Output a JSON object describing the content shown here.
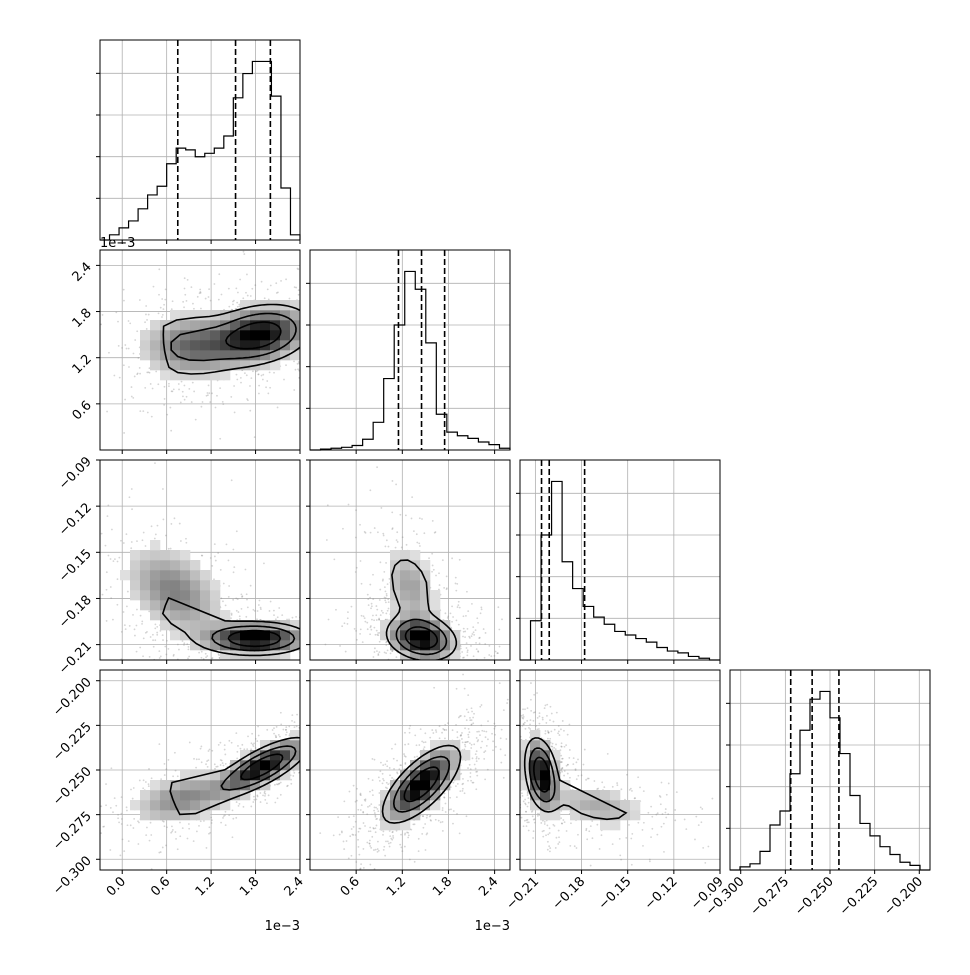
{
  "chart_data": {
    "type": "corner",
    "grid": true,
    "parameters": [
      {
        "range": [
          -0.0003,
          0.0024
        ],
        "ticks": [
          0.0,
          0.6,
          1.2,
          1.8,
          2.4
        ],
        "tick_labels": [
          "0.0",
          "0.6",
          "1.2",
          "1.8",
          "2.4"
        ],
        "offset_label": "1e−3"
      },
      {
        "range": [
          0.0,
          0.0026
        ],
        "ticks": [
          0.6,
          1.2,
          1.8,
          2.4
        ],
        "tick_labels": [
          "0.6",
          "1.2",
          "1.8",
          "2.4"
        ],
        "offset_label": "1e−3"
      },
      {
        "range": [
          -0.22,
          -0.09
        ],
        "ticks": [
          -0.21,
          -0.18,
          -0.15,
          -0.12,
          -0.09
        ],
        "tick_labels": [
          "−0.21",
          "−0.18",
          "−0.15",
          "−0.12",
          "−0.09"
        ],
        "offset_label": ""
      },
      {
        "range": [
          -0.306,
          -0.194
        ],
        "ticks": [
          -0.3,
          -0.275,
          -0.25,
          -0.225,
          -0.2
        ],
        "tick_labels": [
          "−0.300",
          "−0.275",
          "−0.250",
          "−0.225",
          "−0.200"
        ],
        "offset_label": ""
      }
    ],
    "row_tick_labels": [
      [],
      [
        "0.6",
        "1.2",
        "1.8",
        "2.4"
      ],
      [
        "−0.21",
        "−0.18",
        "−0.15",
        "−0.12",
        "−0.09"
      ],
      [
        "−0.300",
        "−0.275",
        "−0.250",
        "−0.225",
        "−0.200"
      ]
    ],
    "row_tick_values": [
      [],
      [
        0.6,
        1.2,
        1.8,
        2.4
      ],
      [
        -0.21,
        -0.18,
        -0.15,
        -0.12,
        -0.09
      ],
      [
        -0.3,
        -0.275,
        -0.25,
        -0.225,
        -0.2
      ]
    ],
    "row_offset_labels": [
      "",
      "1e−3",
      "",
      ""
    ],
    "quantiles": [
      [
        0.00075,
        0.00153,
        0.002
      ],
      [
        0.00115,
        0.00145,
        0.00175
      ],
      [
        -0.206,
        -0.201,
        -0.178
      ],
      [
        -0.272,
        -0.26,
        -0.245
      ]
    ],
    "histograms": [
      [
        0,
        3,
        7,
        11,
        18,
        26,
        31,
        44,
        53,
        52,
        48,
        50,
        53,
        60,
        82,
        96,
        103,
        103,
        83,
        30,
        3
      ],
      [
        0,
        1,
        2,
        3,
        5,
        12,
        31,
        80,
        140,
        200,
        180,
        120,
        40,
        20,
        16,
        13,
        9,
        6,
        2
      ],
      [
        0,
        22,
        70,
        100,
        55,
        40,
        30,
        24,
        20,
        16,
        14,
        12,
        10,
        7,
        5,
        4,
        2,
        1,
        0
      ],
      [
        0,
        2,
        4,
        12,
        29,
        38,
        62,
        90,
        110,
        115,
        98,
        75,
        48,
        30,
        22,
        15,
        10,
        5,
        3,
        0
      ]
    ],
    "density_modes": [
      [],
      [
        {
          "x": 0.00185,
          "y": 0.0015,
          "sx": 0.0004,
          "sy": 0.00022,
          "rho": 0.25,
          "w": 1.0
        },
        {
          "x": 0.0009,
          "y": 0.00135,
          "sx": 0.0004,
          "sy": 0.00025,
          "rho": 0.0,
          "w": 0.55
        }
      ],
      [
        {
          "x": 0.0018,
          "y": -0.206,
          "sx": 0.0004,
          "sy": 0.006,
          "rho": 0.0,
          "w": 1.0
        },
        {
          "x": 0.0007,
          "y": -0.175,
          "sx": 0.0004,
          "sy": 0.018,
          "rho": -0.4,
          "w": 0.45
        }
      ],
      [
        {
          "x": 0.0019,
          "y": -0.248,
          "sx": 0.00035,
          "sy": 0.009,
          "rho": 0.75,
          "w": 1.0
        },
        {
          "x": 0.0008,
          "y": -0.266,
          "sx": 0.0004,
          "sy": 0.009,
          "rho": 0.4,
          "w": 0.45
        }
      ]
    ],
    "density_modes_col1": [
      [],
      [],
      [
        {
          "x": 0.00145,
          "y": -0.206,
          "sx": 0.00025,
          "sy": 0.008,
          "rho": -0.2,
          "w": 1.0
        },
        {
          "x": 0.0013,
          "y": -0.172,
          "sx": 0.00022,
          "sy": 0.016,
          "rho": -0.3,
          "w": 0.35
        }
      ],
      [
        {
          "x": 0.00145,
          "y": -0.258,
          "sx": 0.00028,
          "sy": 0.012,
          "rho": 0.7,
          "w": 1.0
        }
      ]
    ],
    "density_modes_col2": [
      [],
      [],
      [],
      [
        {
          "x": -0.206,
          "y": -0.252,
          "sx": 0.006,
          "sy": 0.011,
          "rho": -0.3,
          "w": 1.0
        },
        {
          "x": -0.17,
          "y": -0.27,
          "sx": 0.02,
          "sy": 0.008,
          "rho": -0.4,
          "w": 0.3
        }
      ]
    ]
  }
}
